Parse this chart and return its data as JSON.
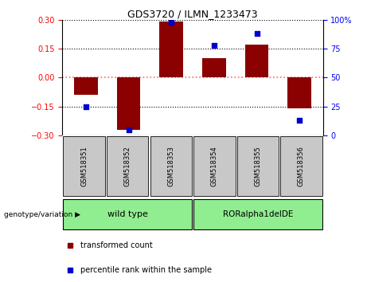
{
  "title": "GDS3720 / ILMN_1233473",
  "samples": [
    "GSM518351",
    "GSM518352",
    "GSM518353",
    "GSM518354",
    "GSM518355",
    "GSM518356"
  ],
  "transformed_count": [
    -0.09,
    -0.27,
    0.29,
    0.1,
    0.17,
    -0.16
  ],
  "percentile_rank": [
    25,
    5,
    98,
    78,
    88,
    13
  ],
  "genotype_groups": [
    {
      "label": "wild type",
      "start": 0,
      "end": 3,
      "color": "#90EE90"
    },
    {
      "label": "RORalpha1delDE",
      "start": 3,
      "end": 6,
      "color": "#90EE90"
    }
  ],
  "ylim_left": [
    -0.3,
    0.3
  ],
  "ylim_right": [
    0,
    100
  ],
  "yticks_left": [
    -0.3,
    -0.15,
    0,
    0.15,
    0.3
  ],
  "yticks_right": [
    0,
    25,
    50,
    75,
    100
  ],
  "bar_color": "#8B0000",
  "dot_color": "#0000CD",
  "zero_line_color": "#FF6666",
  "grid_color": "#000000",
  "background_color": "#FFFFFF",
  "sample_box_color": "#C8C8C8",
  "genotype_label": "genotype/variation",
  "legend_items": [
    "transformed count",
    "percentile rank within the sample"
  ],
  "bar_width": 0.55
}
